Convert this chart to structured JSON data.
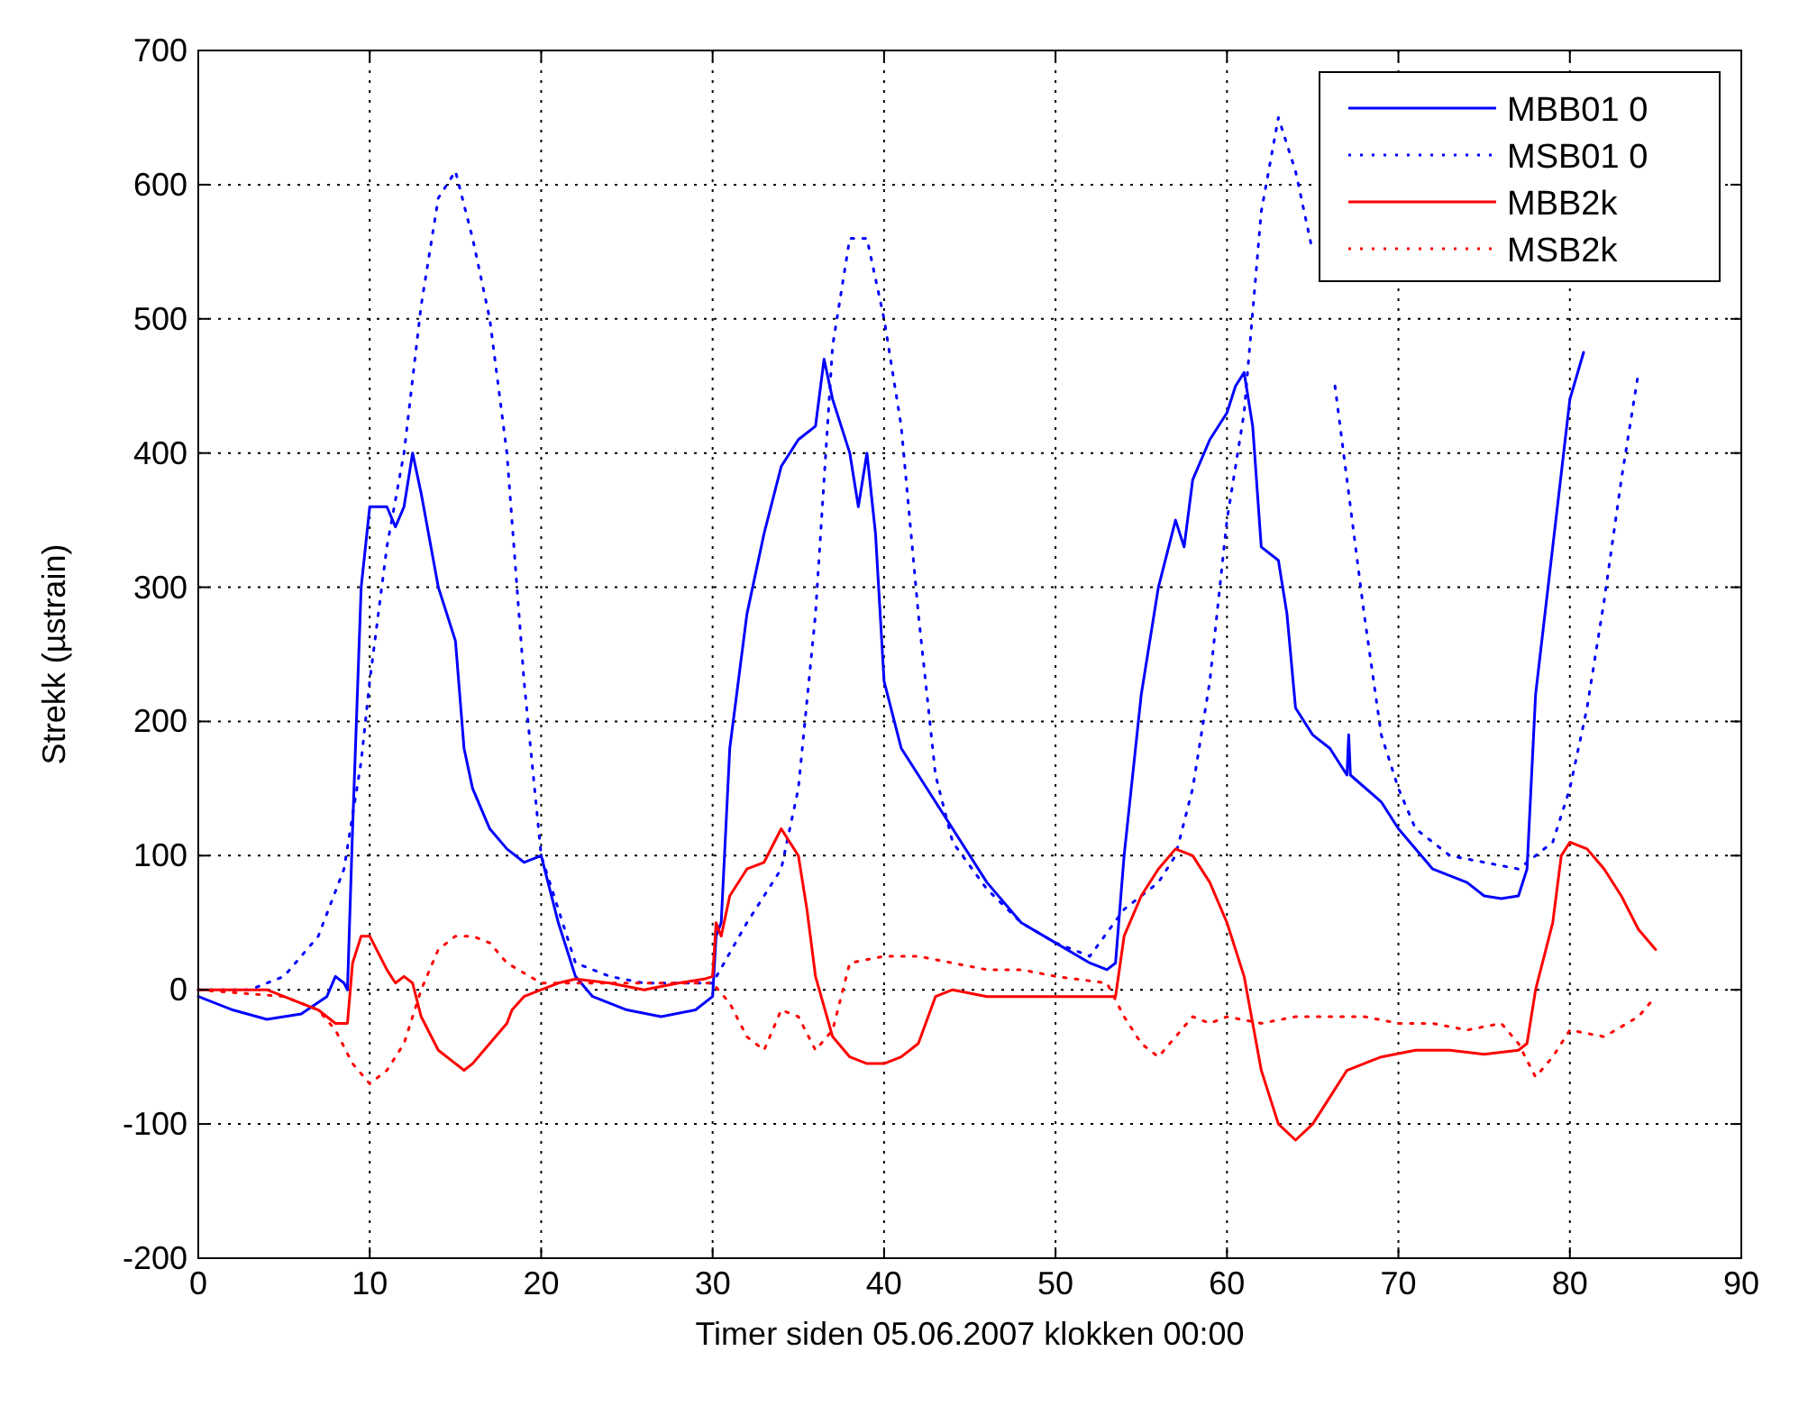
{
  "chart_data": {
    "type": "line",
    "xlabel": "Timer siden 05.06.2007 klokken 00:00",
    "ylabel": "Strekk (µstrain)",
    "xlim": [
      0,
      90
    ],
    "ylim": [
      -200,
      700
    ],
    "xticks": [
      0,
      10,
      20,
      30,
      40,
      50,
      60,
      70,
      80,
      90
    ],
    "yticks": [
      -200,
      -100,
      0,
      100,
      200,
      300,
      400,
      500,
      600,
      700
    ],
    "grid": true,
    "legend": "top right",
    "series": [
      {
        "name": "MBB01 0",
        "color": "#0000ff",
        "line_style": "solid",
        "x": [
          0,
          2,
          4,
          6,
          7.5,
          8,
          8.5,
          8.7,
          9,
          9.5,
          10,
          11,
          11.5,
          12,
          12.5,
          13,
          14,
          15,
          15.5,
          16,
          17,
          18,
          19,
          20,
          21,
          22,
          23,
          25,
          27,
          29,
          30,
          30.2,
          30.5,
          31,
          32,
          33,
          34,
          35,
          36,
          36.5,
          37,
          38,
          38.5,
          39,
          39.5,
          40,
          41,
          42,
          44,
          46,
          48,
          50,
          52,
          53,
          53.5,
          54,
          55,
          56,
          57,
          57.5,
          58,
          59,
          60,
          60.5,
          61,
          61.5,
          62,
          63,
          63.5,
          64,
          65,
          66,
          67,
          67.1,
          67.2,
          69,
          70,
          72,
          74,
          75,
          76,
          77,
          77.5,
          78,
          79,
          80,
          80.8
        ],
        "values": [
          -5,
          -15,
          -22,
          -18,
          -5,
          10,
          5,
          0,
          120,
          300,
          360,
          360,
          345,
          360,
          400,
          370,
          300,
          260,
          180,
          150,
          120,
          105,
          95,
          100,
          50,
          10,
          -5,
          -15,
          -20,
          -15,
          -5,
          40,
          50,
          180,
          280,
          340,
          390,
          410,
          420,
          470,
          440,
          400,
          360,
          400,
          340,
          230,
          180,
          160,
          120,
          80,
          50,
          35,
          20,
          15,
          20,
          100,
          220,
          300,
          350,
          330,
          380,
          410,
          430,
          450,
          460,
          420,
          330,
          320,
          280,
          210,
          190,
          180,
          160,
          190,
          160,
          140,
          120,
          90,
          80,
          70,
          68,
          70,
          90,
          220,
          330,
          440,
          475
        ]
      },
      {
        "name": "MSB01 0",
        "color": "#0000ff",
        "line_style": "dotted",
        "x": [
          0,
          3,
          5,
          7,
          8.5,
          9.5,
          10,
          11,
          12,
          13,
          14,
          15,
          16,
          17,
          18,
          19,
          20,
          21,
          22,
          24,
          26,
          28,
          30,
          32,
          34,
          35,
          36,
          37,
          38,
          39,
          40,
          41,
          42,
          43,
          44,
          46,
          48,
          50,
          52,
          54,
          56,
          57,
          58,
          59,
          60,
          61,
          62,
          63,
          64,
          65,
          65.5,
          66.3,
          67,
          68,
          69,
          70,
          71,
          73,
          75,
          77,
          78,
          79,
          80,
          81,
          82,
          83,
          84
        ],
        "values": [
          0,
          0,
          10,
          40,
          90,
          170,
          230,
          330,
          400,
          510,
          590,
          610,
          560,
          500,
          400,
          230,
          100,
          60,
          20,
          10,
          5,
          5,
          5,
          50,
          90,
          150,
          280,
          480,
          560,
          560,
          500,
          420,
          280,
          160,
          110,
          75,
          50,
          35,
          25,
          60,
          80,
          100,
          150,
          230,
          350,
          430,
          580,
          650,
          610,
          550,
          null,
          450,
          380,
          280,
          190,
          150,
          120,
          100,
          95,
          90,
          100,
          110,
          150,
          210,
          290,
          380,
          460
        ]
      },
      {
        "name": "MBB2k",
        "color": "#ff0000",
        "line_style": "solid",
        "x": [
          0,
          4,
          5,
          7,
          8,
          8.7,
          9,
          9.5,
          10,
          11,
          11.5,
          12,
          12.5,
          13,
          14,
          15,
          15.5,
          16,
          17,
          18,
          18.3,
          19,
          20,
          21,
          22,
          24,
          26,
          28,
          29.5,
          30,
          30.2,
          30.5,
          31,
          32,
          33,
          34,
          35,
          35.5,
          36,
          37,
          38,
          39,
          40,
          41,
          42,
          43,
          44,
          46,
          48,
          50,
          53.5,
          54,
          55,
          56,
          57,
          58,
          59,
          60,
          61,
          62,
          63,
          64,
          65,
          66,
          67,
          69,
          71,
          73,
          75,
          77,
          77.5,
          78,
          79,
          79.5,
          80,
          81,
          82,
          83,
          84,
          85
        ],
        "values": [
          0,
          0,
          -5,
          -15,
          -25,
          -25,
          20,
          40,
          40,
          15,
          5,
          10,
          5,
          -20,
          -45,
          -55,
          -60,
          -55,
          -40,
          -25,
          -15,
          -5,
          0,
          5,
          8,
          5,
          0,
          5,
          8,
          10,
          50,
          40,
          70,
          90,
          95,
          120,
          100,
          60,
          10,
          -35,
          -50,
          -55,
          -55,
          -50,
          -40,
          -5,
          0,
          -5,
          -5,
          -5,
          -5,
          40,
          70,
          90,
          105,
          100,
          80,
          50,
          10,
          -60,
          -100,
          -112,
          -100,
          -80,
          -60,
          -50,
          -45,
          -45,
          -48,
          -45,
          -40,
          0,
          50,
          100,
          110,
          105,
          90,
          70,
          45,
          30
        ]
      },
      {
        "name": "MSB2k",
        "color": "#ff0000",
        "line_style": "dotted",
        "x": [
          0,
          5,
          7,
          8,
          9,
          10,
          11,
          12,
          13,
          14,
          15,
          16,
          17,
          18,
          20,
          22,
          25,
          28,
          30,
          31,
          32,
          33,
          34,
          35,
          36,
          37,
          38,
          40,
          42,
          44,
          46,
          48,
          50,
          53,
          54,
          55,
          56,
          57,
          58,
          59,
          60,
          62,
          64,
          66,
          68,
          70,
          72,
          74,
          76,
          77,
          78,
          79,
          80,
          82,
          84,
          85
        ],
        "values": [
          0,
          -5,
          -15,
          -30,
          -55,
          -70,
          -60,
          -40,
          0,
          30,
          40,
          40,
          35,
          20,
          5,
          5,
          5,
          5,
          5,
          -10,
          -35,
          -45,
          -15,
          -20,
          -45,
          -30,
          20,
          25,
          25,
          20,
          15,
          15,
          10,
          5,
          -20,
          -40,
          -50,
          -35,
          -20,
          -25,
          -20,
          -25,
          -20,
          -20,
          -20,
          -25,
          -25,
          -30,
          -25,
          -40,
          -65,
          -50,
          -30,
          -35,
          -20,
          -5
        ]
      }
    ]
  }
}
